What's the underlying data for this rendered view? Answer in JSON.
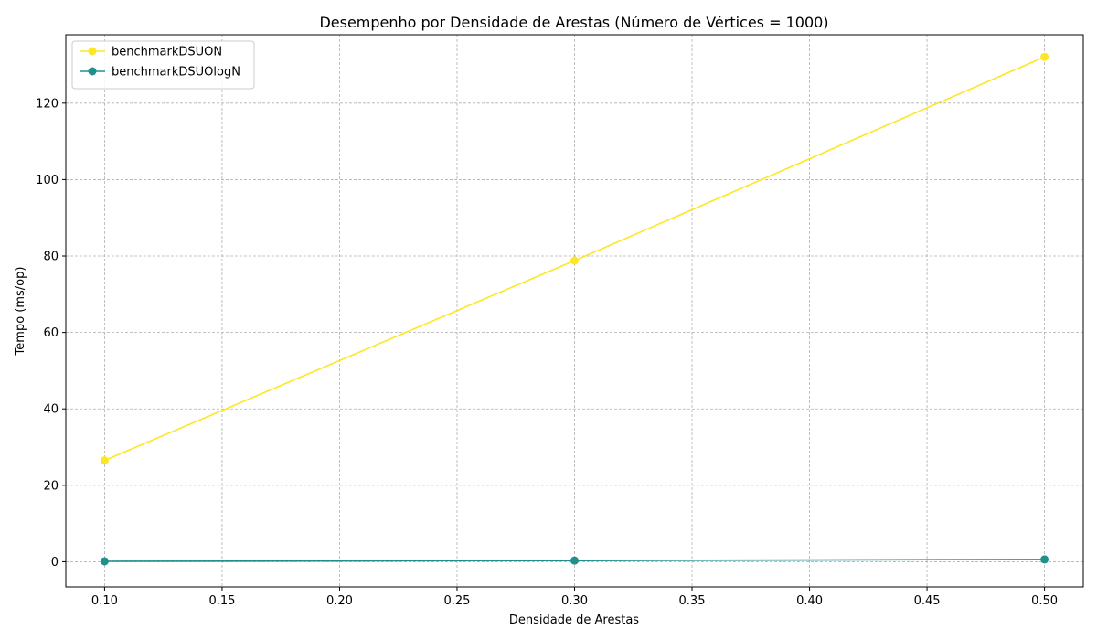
{
  "chart_data": {
    "type": "line",
    "title": "Desempenho por Densidade de Arestas (Número de Vértices = 1000)",
    "xlabel": "Densidade de Arestas",
    "ylabel": "Tempo (ms/op)",
    "x": [
      0.1,
      0.3,
      0.5
    ],
    "xlim": [
      0.0835,
      0.5165
    ],
    "ylim": [
      -6.6,
      137.9
    ],
    "xticks": [
      "0.10",
      "0.15",
      "0.20",
      "0.25",
      "0.30",
      "0.35",
      "0.40",
      "0.45",
      "0.50"
    ],
    "yticks": [
      "0",
      "20",
      "40",
      "60",
      "80",
      "100",
      "120"
    ],
    "grid": true,
    "legend_position": "top-left",
    "series": [
      {
        "name": "benchmarkDSUON",
        "color": "#fde725",
        "values": [
          26.5,
          78.8,
          132.1
        ]
      },
      {
        "name": "benchmarkDSUOlogN",
        "color": "#21908d",
        "values": [
          0.1,
          0.3,
          0.6
        ]
      }
    ]
  }
}
